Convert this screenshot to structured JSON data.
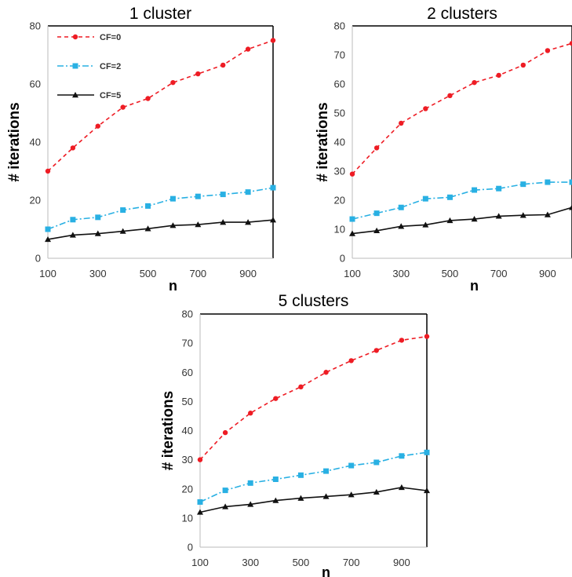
{
  "colors": {
    "CF=0": "#ee1c24",
    "CF=2": "#29b0e3",
    "CF=5": "#111111"
  },
  "legend": {
    "placement": "top-left",
    "entries": [
      "CF=0",
      "CF=2",
      "CF=5"
    ]
  },
  "chart_data": [
    {
      "type": "line",
      "title": "1 cluster",
      "xlabel": "n",
      "ylabel": "# iterations",
      "x": [
        100,
        200,
        300,
        400,
        500,
        600,
        700,
        800,
        900,
        1000
      ],
      "xticks": [
        100,
        300,
        500,
        700,
        900
      ],
      "yticks": [
        0,
        20,
        40,
        60,
        80
      ],
      "ylim": [
        0,
        80
      ],
      "xlim": [
        100,
        1000
      ],
      "grid": false,
      "legend": true,
      "series": [
        {
          "name": "CF=0",
          "values": [
            30,
            38,
            45.5,
            52,
            55,
            60.5,
            63.5,
            66.5,
            72,
            75
          ]
        },
        {
          "name": "CF=2",
          "values": [
            10,
            13.3,
            14.1,
            16.6,
            18,
            20.5,
            21.3,
            22,
            22.8,
            24.3
          ]
        },
        {
          "name": "CF=5",
          "values": [
            6.5,
            8,
            8.5,
            9.3,
            10.2,
            11.3,
            11.6,
            12.4,
            12.4,
            13.2
          ]
        }
      ]
    },
    {
      "type": "line",
      "title": "2 clusters",
      "xlabel": "n",
      "ylabel": "# iterations",
      "x": [
        100,
        200,
        300,
        400,
        500,
        600,
        700,
        800,
        900,
        1000
      ],
      "xticks": [
        100,
        300,
        500,
        700,
        900
      ],
      "yticks": [
        0,
        10,
        20,
        30,
        40,
        50,
        60,
        70,
        80
      ],
      "ylim": [
        0,
        80
      ],
      "xlim": [
        100,
        1000
      ],
      "grid": false,
      "legend": false,
      "series": [
        {
          "name": "CF=0",
          "values": [
            29,
            38,
            46.5,
            51.5,
            56,
            60.5,
            63,
            66.5,
            71.5,
            74
          ]
        },
        {
          "name": "CF=2",
          "values": [
            13.5,
            15.5,
            17.5,
            20.5,
            21,
            23.5,
            24,
            25.5,
            26.2,
            26.2
          ]
        },
        {
          "name": "CF=5",
          "values": [
            8.5,
            9.5,
            11,
            11.5,
            13,
            13.5,
            14.5,
            14.8,
            15,
            17.5
          ]
        }
      ]
    },
    {
      "type": "line",
      "title": "5 clusters",
      "xlabel": "n",
      "ylabel": "# iterations",
      "x": [
        100,
        200,
        300,
        400,
        500,
        600,
        700,
        800,
        900,
        1000
      ],
      "xticks": [
        100,
        300,
        500,
        700,
        900
      ],
      "yticks": [
        0,
        10,
        20,
        30,
        40,
        50,
        60,
        70,
        80
      ],
      "ylim": [
        0,
        80
      ],
      "xlim": [
        100,
        1000
      ],
      "grid": false,
      "legend": false,
      "series": [
        {
          "name": "CF=0",
          "values": [
            30,
            39.3,
            46,
            51,
            55,
            60,
            64,
            67.5,
            71,
            72.3
          ]
        },
        {
          "name": "CF=2",
          "values": [
            15.5,
            19.5,
            22,
            23.3,
            24.7,
            26.1,
            28,
            29.1,
            31.3,
            32.5
          ]
        },
        {
          "name": "CF=5",
          "values": [
            12,
            13.9,
            14.7,
            16,
            16.8,
            17.4,
            18,
            18.9,
            20.5,
            19.4
          ]
        }
      ]
    }
  ]
}
